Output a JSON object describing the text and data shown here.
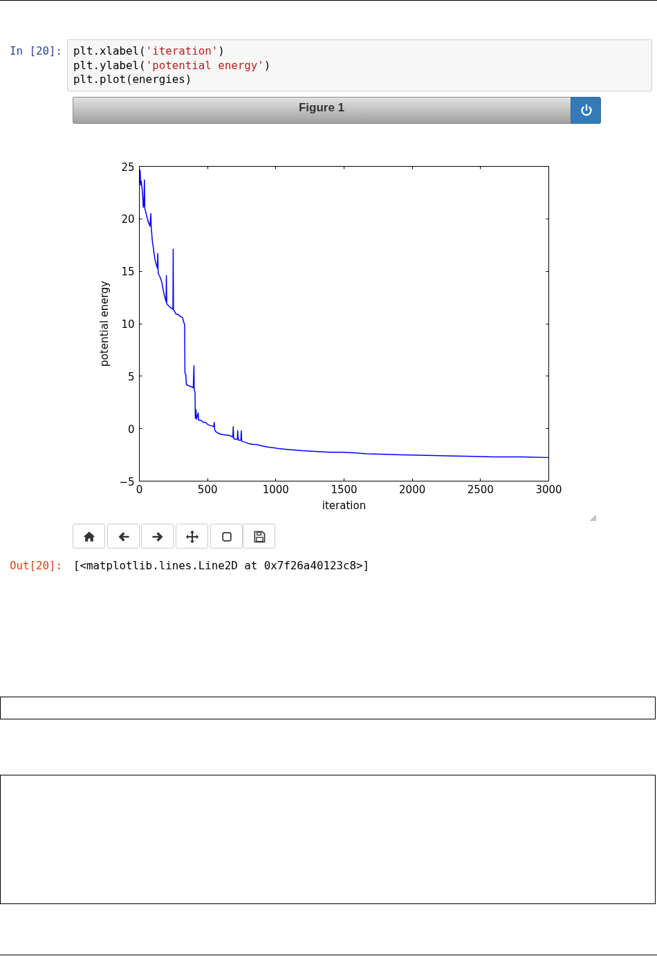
{
  "chart_data": {
    "type": "line",
    "title": "Figure 1",
    "xlabel": "iteration",
    "ylabel": "potential energy",
    "x": [
      0,
      3,
      6,
      9,
      14,
      20,
      25,
      29,
      33,
      37,
      40,
      46,
      55,
      63,
      78,
      84,
      87,
      96,
      105,
      113,
      125,
      132,
      135,
      138,
      150,
      164,
      175,
      189,
      196,
      198,
      201,
      215,
      232,
      246,
      248,
      250,
      257,
      270,
      282,
      300,
      316,
      324,
      332,
      334,
      340,
      345,
      360,
      380,
      395,
      400,
      402,
      408,
      410,
      415,
      418,
      431,
      434,
      450,
      470,
      485,
      500,
      519,
      545,
      549,
      552,
      561,
      580,
      603,
      630,
      662,
      685,
      688,
      691,
      696,
      718,
      721,
      724,
      744,
      747,
      750,
      775,
      797,
      830,
      857,
      900,
      941,
      1000,
      1020,
      1059,
      1100,
      1150,
      1194,
      1260,
      1330,
      1400,
      1480,
      1566,
      1667,
      1800,
      1921,
      2100,
      2259,
      2450,
      2595,
      2800,
      3000
    ],
    "series": [
      {
        "color": "#0000ff",
        "values": [
          24.8,
          23.4,
          24.6,
          23.2,
          23.6,
          22.9,
          22.0,
          21.1,
          21.3,
          23.7,
          21.0,
          20.7,
          20.2,
          19.8,
          19.3,
          20.5,
          19.2,
          17.8,
          17.0,
          16.2,
          15.6,
          15.3,
          16.7,
          14.8,
          14.5,
          14.0,
          13.2,
          12.4,
          12.1,
          14.6,
          11.9,
          11.7,
          11.5,
          11.4,
          17.1,
          11.3,
          11.2,
          10.9,
          10.9,
          10.7,
          10.6,
          10.2,
          9.9,
          5.3,
          5.2,
          4.2,
          4.1,
          4.0,
          3.9,
          6.0,
          3.7,
          3.5,
          1.0,
          1.8,
          0.9,
          1.5,
          0.8,
          0.8,
          0.6,
          0.6,
          0.4,
          0.3,
          0.2,
          0.6,
          -0.1,
          -0.3,
          -0.45,
          -0.55,
          -0.6,
          -0.65,
          -0.8,
          0.2,
          -0.9,
          -1.0,
          -1.0,
          -0.2,
          -1.1,
          -1.1,
          -0.2,
          -1.2,
          -1.3,
          -1.4,
          -1.5,
          -1.5,
          -1.65,
          -1.75,
          -1.85,
          -1.9,
          -1.95,
          -2.0,
          -2.05,
          -2.1,
          -2.15,
          -2.2,
          -2.25,
          -2.25,
          -2.3,
          -2.4,
          -2.45,
          -2.5,
          -2.55,
          -2.6,
          -2.65,
          -2.7,
          -2.7,
          -2.75
        ]
      }
    ],
    "xlim": [
      0,
      3000
    ],
    "ylim": [
      -5,
      25
    ],
    "xticks": [
      0,
      500,
      1000,
      1500,
      2000,
      2500,
      3000
    ],
    "yticks": [
      {
        "value": -5,
        "label": "−5"
      },
      0,
      5,
      10,
      15,
      20,
      25
    ],
    "line_style": "solid",
    "annotations": [
      "In [20]:",
      "plt.xlabel('iteration')",
      "plt.ylabel('potential energy')",
      "plt.plot(energies)",
      "Out[20]:",
      "[<matplotlib.lines.Line2D at 0x7f26a40123c8>]"
    ]
  }
}
